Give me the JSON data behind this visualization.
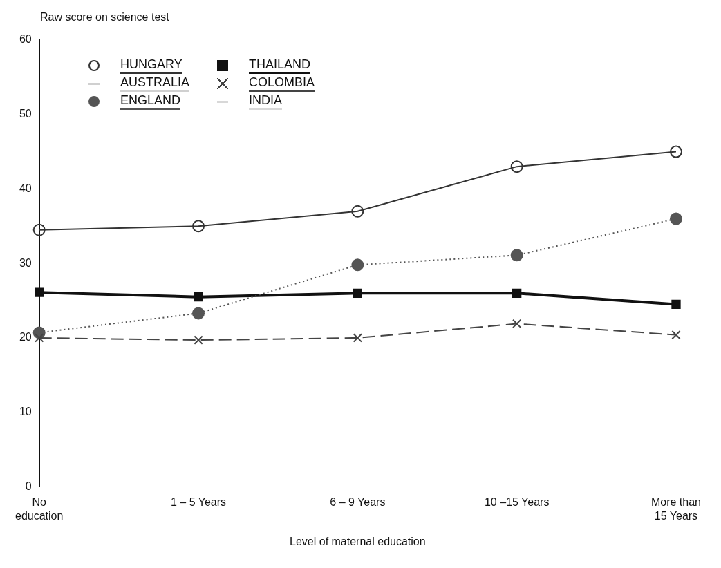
{
  "chart_data": {
    "type": "line",
    "ylabel": "Raw score on science test",
    "xlabel": "Level of maternal education",
    "categories": [
      "No\neducation",
      "1 – 5 Years",
      "6 – 9 Years",
      "10 –15 Years",
      "More than\n15 Years"
    ],
    "series": [
      {
        "name": "HUNGARY",
        "color": "#333333",
        "marker": "circle",
        "line_style": "solid",
        "values": [
          34.5,
          35,
          37,
          43,
          45
        ]
      },
      {
        "name": "AUSTRALIA",
        "color": "#d0d0d0",
        "marker": "none",
        "line_style": "solid",
        "values": [
          null,
          null,
          null,
          null,
          null
        ]
      },
      {
        "name": "ENGLAND",
        "color": "#555555",
        "marker": "circle",
        "line_style": "dotted",
        "values": [
          20.7,
          23.3,
          29.8,
          31.1,
          36
        ]
      },
      {
        "name": "THAILAND",
        "color": "#111111",
        "marker": "square",
        "line_style": "solid",
        "values": [
          26.1,
          25.5,
          26,
          26,
          24.5
        ]
      },
      {
        "name": "COLOMBIA",
        "color": "#444444",
        "marker": "cross",
        "line_style": "dashed",
        "values": [
          20,
          19.7,
          20,
          21.9,
          20.4
        ]
      },
      {
        "name": "INDIA",
        "color": "#d8d8d8",
        "marker": "none",
        "line_style": "solid",
        "values": [
          null,
          null,
          null,
          null,
          null
        ]
      }
    ],
    "ylim": [
      0,
      60
    ],
    "yticks": [
      0,
      10,
      20,
      30,
      40,
      50,
      60
    ],
    "grid": false,
    "legend": "top left"
  }
}
